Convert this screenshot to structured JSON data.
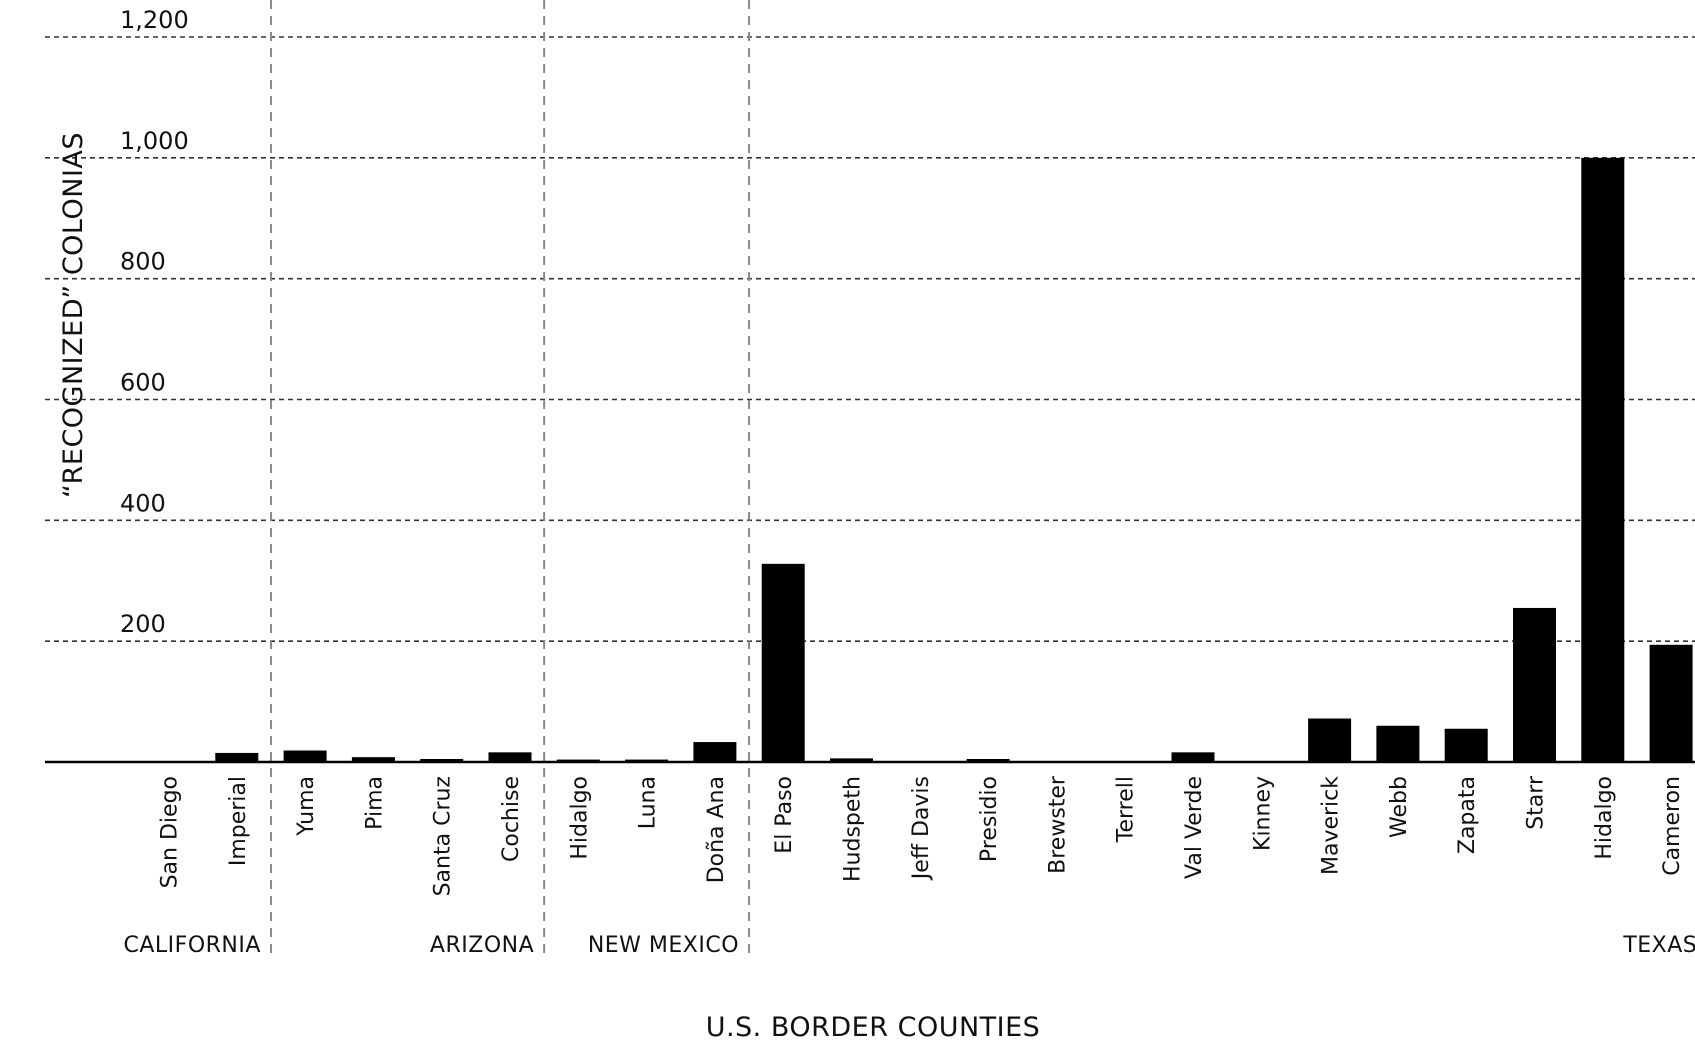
{
  "chart_data": {
    "type": "bar",
    "title": "",
    "xlabel": "U.S. BORDER COUNTIES",
    "ylabel": "“RECOGNIZED” COLONIAS",
    "ylim": [
      0,
      1200
    ],
    "yticks": [
      200,
      400,
      600,
      800,
      "1,000",
      "1,200"
    ],
    "grid": true,
    "colors": {
      "bar": "#000000",
      "grid": "#333333",
      "separator": "#888888"
    },
    "categories": [
      "San Diego",
      "Imperial",
      "Yuma",
      "Pima",
      "Santa Cruz",
      "Cochise",
      "Hidalgo",
      "Luna",
      "Doña Ana",
      "El Paso",
      "Hudspeth",
      "Jeff Davis",
      "Presidio",
      "Brewster",
      "Terrell",
      "Val Verde",
      "Kinney",
      "Maverick",
      "Webb",
      "Zapata",
      "Starr",
      "Hidalgo",
      "Cameron"
    ],
    "values": [
      0,
      15,
      19,
      8,
      5,
      16,
      4,
      4,
      33,
      328,
      6,
      0,
      5,
      0,
      0,
      16,
      0,
      72,
      60,
      55,
      255,
      1000,
      194
    ],
    "regions": [
      {
        "name": "CALIFORNIA",
        "start": 0,
        "end": 1
      },
      {
        "name": "ARIZONA",
        "start": 2,
        "end": 5
      },
      {
        "name": "NEW MEXICO",
        "start": 6,
        "end": 8
      },
      {
        "name": "TEXAS",
        "start": 9,
        "end": 22
      }
    ]
  }
}
